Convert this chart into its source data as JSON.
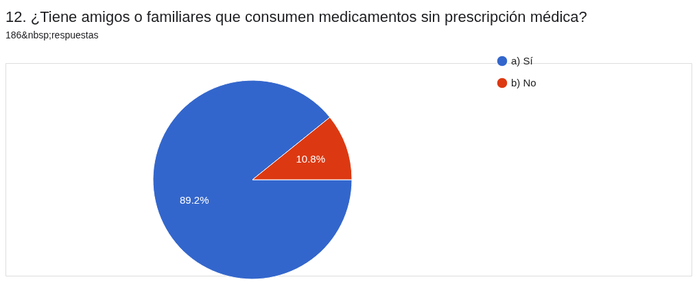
{
  "chart_data": {
    "type": "pie",
    "title": "12. ¿Tiene amigos o familiares que consumen medicamentos sin prescripción médica?",
    "subtitle": "186&nbsp;respuestas",
    "categories": [
      "a) Sí",
      "b) No"
    ],
    "values": [
      89.2,
      10.8
    ],
    "colors": [
      "#3366cc",
      "#dc3912"
    ],
    "value_labels": [
      "89.2%",
      "10.8%"
    ],
    "legend": "top right"
  }
}
